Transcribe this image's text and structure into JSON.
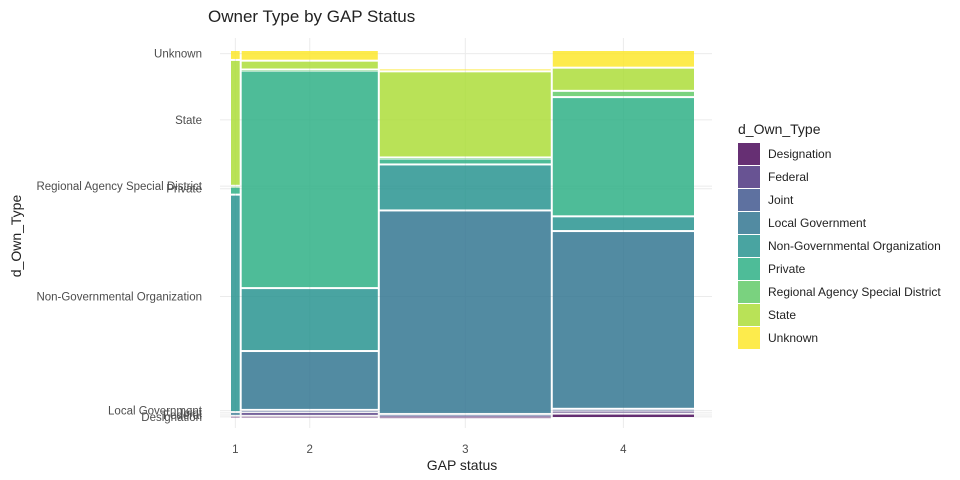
{
  "chart_data": {
    "type": "mosaic",
    "title": "Owner Type by GAP Status",
    "xlabel": "GAP status",
    "ylabel": "d_Own_Type",
    "legend": {
      "title": "d_Own_Type",
      "position": "right",
      "entries": [
        "Designation",
        "Federal",
        "Joint",
        "Local Government",
        "Non-Governmental Organization",
        "Private",
        "Regional Agency Special District",
        "State",
        "Unknown"
      ]
    },
    "colors": [
      "#440154",
      "#472D7B",
      "#3B528B",
      "#2C728E",
      "#21908C",
      "#27AD81",
      "#5DC863",
      "#AADC32",
      "#FDE725"
    ],
    "categories_x": [
      "1",
      "2",
      "3",
      "4"
    ],
    "x_widths": [
      0.023,
      0.297,
      0.372,
      0.308
    ],
    "categories_y": [
      "Designation",
      "Federal",
      "Joint",
      "Local Government",
      "Non-Governmental Organization",
      "Private",
      "Regional Agency Special District",
      "State",
      "Unknown"
    ],
    "proportions": [
      [
        0.006,
        0.0,
        0.0,
        0.01,
        0.591,
        0.021,
        0.003,
        0.342,
        0.027
      ],
      [
        0.006,
        0.01,
        0.006,
        0.16,
        0.171,
        0.591,
        0.003,
        0.024,
        0.029
      ],
      [
        0.004,
        0.004,
        0.003,
        0.553,
        0.125,
        0.016,
        0.003,
        0.234,
        0.008
      ],
      [
        0.012,
        0.008,
        0.005,
        0.483,
        0.04,
        0.324,
        0.017,
        0.063,
        0.048
      ]
    ],
    "y_tick_labels": [
      "Designation",
      "Federal",
      "Joint",
      "Local Government",
      "Non-Governmental Organization",
      "Private",
      "Regional Agency Special District",
      "State",
      "Unknown"
    ],
    "y_tick_positions": [
      0.003,
      0.008,
      0.014,
      0.02,
      0.33,
      0.623,
      0.63,
      0.81,
      0.99
    ],
    "grid": true
  }
}
